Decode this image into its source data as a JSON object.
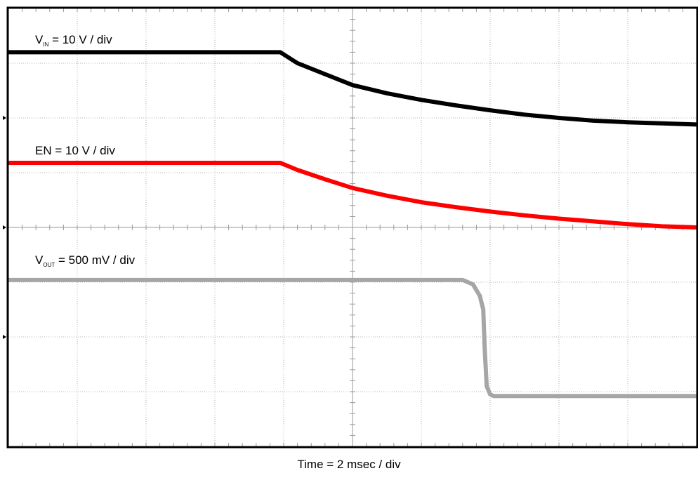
{
  "chart_data": {
    "type": "line",
    "title": "",
    "xlabel": "Time = 2 msec / div",
    "divisions": {
      "x": 10,
      "y": 8
    },
    "xlim": [
      0,
      10
    ],
    "ylim": [
      0,
      8
    ],
    "grid": true,
    "x_unit_label": "div",
    "series": [
      {
        "key": "vin",
        "label_main": "V",
        "label_sub": "IN",
        "label_rest": " = 10 V / div",
        "color": "#000000",
        "x": [
          0,
          1,
          2,
          3,
          3.95,
          4.2,
          4.6,
          5.0,
          5.5,
          6.0,
          6.5,
          7.0,
          7.5,
          8.0,
          8.5,
          9.0,
          9.5,
          10.0
        ],
        "y": [
          7.2,
          7.2,
          7.2,
          7.2,
          7.2,
          7.0,
          6.8,
          6.6,
          6.45,
          6.33,
          6.23,
          6.14,
          6.06,
          6.0,
          5.95,
          5.92,
          5.9,
          5.88
        ]
      },
      {
        "key": "en",
        "label_main": "EN = 10 V / div",
        "label_sub": "",
        "label_rest": "",
        "color": "#ff0000",
        "x": [
          0,
          1,
          2,
          3,
          3.95,
          4.2,
          4.6,
          5.0,
          5.5,
          6.0,
          6.5,
          7.0,
          7.5,
          8.0,
          8.5,
          9.0,
          9.5,
          10.0
        ],
        "y": [
          5.18,
          5.18,
          5.18,
          5.18,
          5.18,
          5.05,
          4.88,
          4.72,
          4.58,
          4.46,
          4.37,
          4.29,
          4.22,
          4.16,
          4.11,
          4.06,
          4.02,
          4.0
        ]
      },
      {
        "key": "vout",
        "label_main": "V",
        "label_sub": "OUT",
        "label_rest": " = 500 mV / div",
        "color": "#a6a6a6",
        "x": [
          0,
          1,
          2,
          3,
          4,
          5,
          6,
          6.6,
          6.75,
          6.85,
          6.9,
          6.92,
          6.95,
          7.0,
          7.05,
          8,
          9,
          10
        ],
        "y": [
          3.04,
          3.04,
          3.04,
          3.04,
          3.04,
          3.04,
          3.04,
          3.04,
          2.96,
          2.75,
          2.5,
          1.8,
          1.1,
          0.95,
          0.92,
          0.92,
          0.92,
          0.92
        ]
      }
    ]
  }
}
